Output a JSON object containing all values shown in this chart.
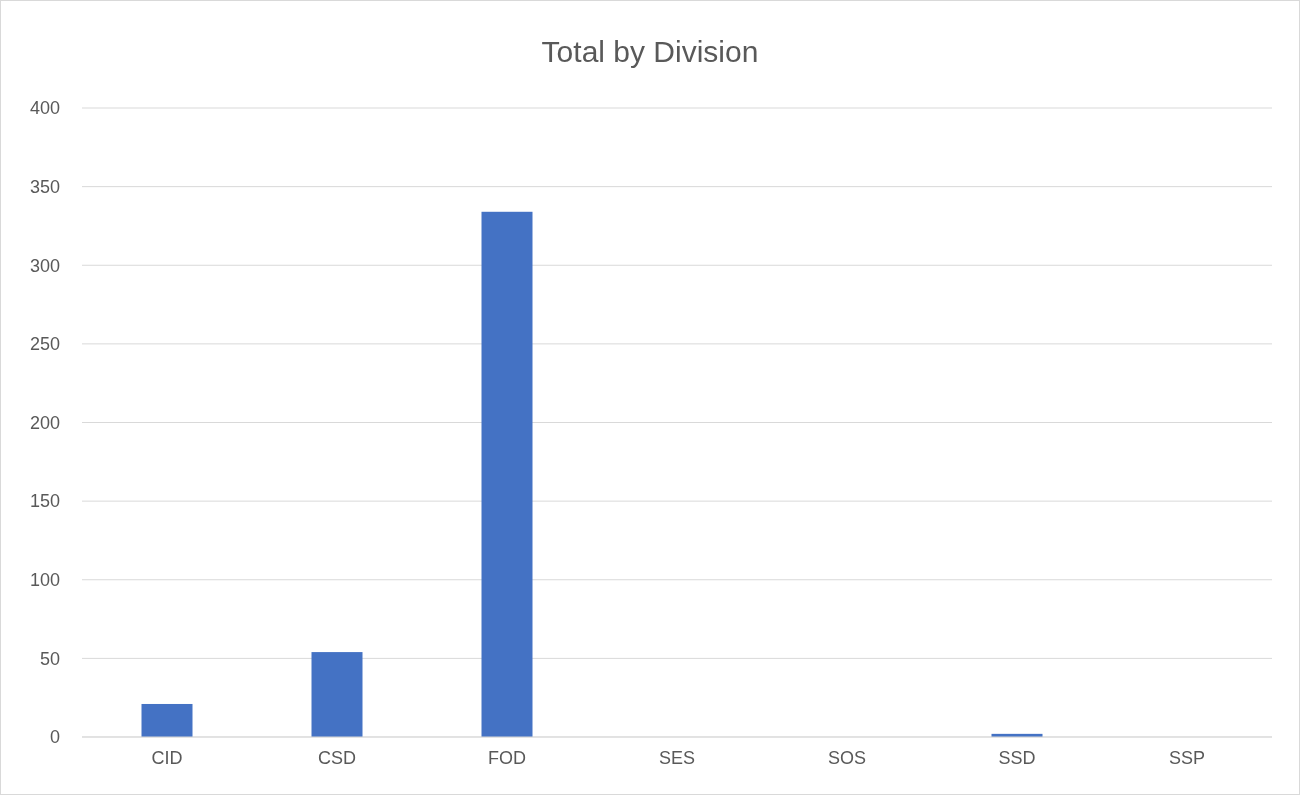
{
  "chart_data": {
    "type": "bar",
    "title": "Total by Division",
    "categories": [
      "CID",
      "CSD",
      "FOD",
      "SES",
      "SOS",
      "SSD",
      "SSP"
    ],
    "values": [
      21,
      54,
      334,
      0,
      0,
      2,
      0
    ],
    "color": "#4472c4",
    "ylim": [
      0,
      400
    ],
    "yticks": [
      0,
      50,
      100,
      150,
      200,
      250,
      300,
      350,
      400
    ],
    "grid": "y"
  }
}
